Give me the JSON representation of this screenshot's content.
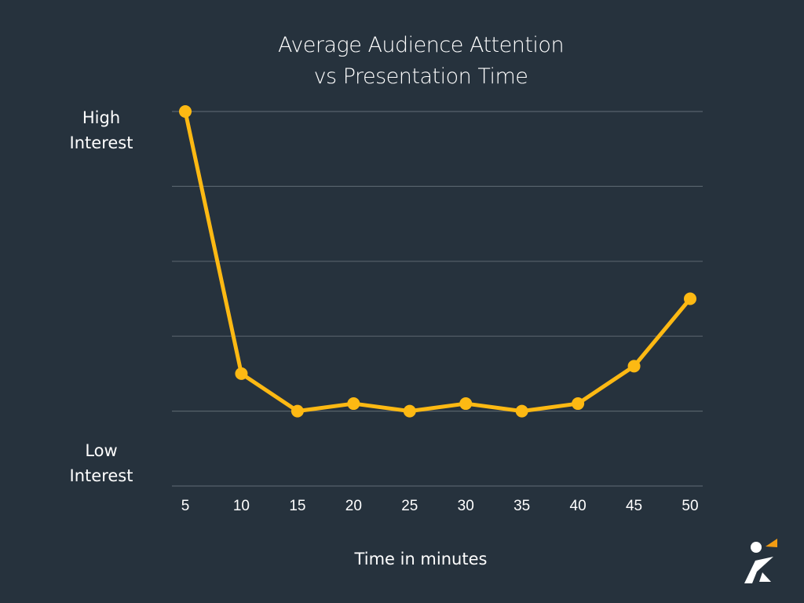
{
  "chart_data": {
    "type": "line",
    "title": [
      "Average Audience Attention",
      "vs Presentation Time"
    ],
    "xlabel": "Time in minutes",
    "ylabel_high": [
      "High",
      "Interest"
    ],
    "ylabel_low": [
      "Low",
      "Interest"
    ],
    "x": [
      5,
      10,
      15,
      20,
      25,
      30,
      35,
      40,
      45,
      50
    ],
    "values": [
      5,
      1.5,
      1.0,
      1.1,
      1.0,
      1.1,
      1.0,
      1.1,
      1.6,
      2.5
    ],
    "ylim": [
      0,
      5
    ],
    "grid": true,
    "colors": {
      "background": "#26323d",
      "line": "#fdb913",
      "grid": "#56616b",
      "text": "#ffffff",
      "logo_accent": "#f39c12"
    }
  }
}
